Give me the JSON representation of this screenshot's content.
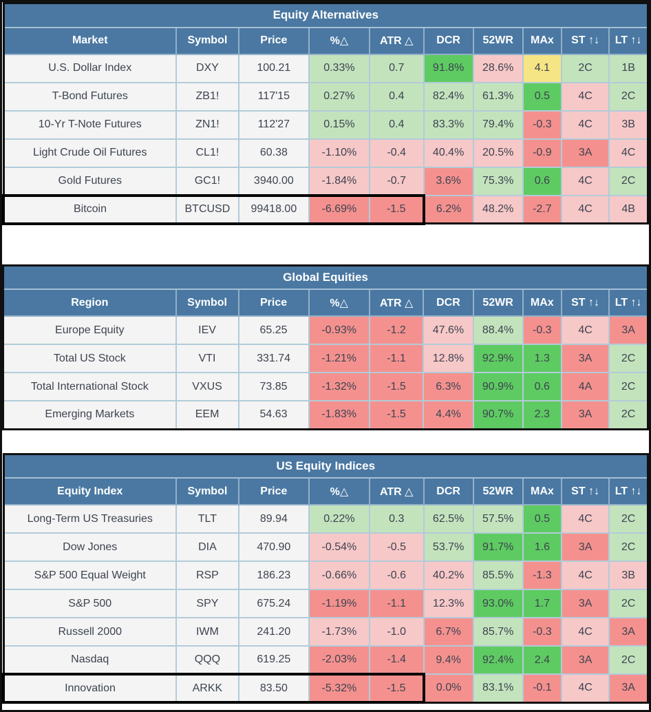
{
  "palette": {
    "n": "#f4f4f4",
    "g": "#c3e3bd",
    "G": "#5ecb62",
    "r": "#f7c8c8",
    "R": "#f4918f",
    "y": "#f6e584",
    "headerBlue": "#4a78a2",
    "gridLine": "#b2cbd9",
    "highlightBorder": "#000000"
  },
  "column_widths_pct": [
    26.8,
    9.7,
    10.9,
    9.4,
    8.4,
    7.7,
    7.7,
    6.0,
    7.4,
    6.0
  ],
  "tables": [
    {
      "title": "Equity Alternatives",
      "columns": [
        {
          "label": "Market",
          "sortable": false
        },
        {
          "label": "Symbol",
          "sortable": false
        },
        {
          "label": "Price",
          "sortable": false
        },
        {
          "label": "%△",
          "sortable": false
        },
        {
          "label": "ATR △",
          "sortable": false
        },
        {
          "label": "DCR",
          "sortable": false
        },
        {
          "label": "52WR",
          "sortable": false
        },
        {
          "label": "MAx",
          "sortable": false
        },
        {
          "label": "ST ↑↓",
          "sortable": true
        },
        {
          "label": "LT ↑↓",
          "sortable": true
        }
      ],
      "rows": [
        {
          "highlight": false,
          "cells": [
            {
              "t": "U.S. Dollar Index",
              "c": "n"
            },
            {
              "t": "DXY",
              "c": "n"
            },
            {
              "t": "100.21",
              "c": "n"
            },
            {
              "t": "0.33%",
              "c": "g"
            },
            {
              "t": "0.7",
              "c": "g"
            },
            {
              "t": "91.8%",
              "c": "G"
            },
            {
              "t": "28.6%",
              "c": "r"
            },
            {
              "t": "4.1",
              "c": "y"
            },
            {
              "t": "2C",
              "c": "g"
            },
            {
              "t": "1B",
              "c": "g"
            }
          ]
        },
        {
          "highlight": false,
          "cells": [
            {
              "t": "T-Bond Futures",
              "c": "n"
            },
            {
              "t": "ZB1!",
              "c": "n"
            },
            {
              "t": "117'15",
              "c": "n"
            },
            {
              "t": "0.27%",
              "c": "g"
            },
            {
              "t": "0.4",
              "c": "g"
            },
            {
              "t": "82.4%",
              "c": "g"
            },
            {
              "t": "61.3%",
              "c": "g"
            },
            {
              "t": "0.5",
              "c": "G"
            },
            {
              "t": "4C",
              "c": "r"
            },
            {
              "t": "2C",
              "c": "g"
            }
          ]
        },
        {
          "highlight": false,
          "cells": [
            {
              "t": "10-Yr T-Note Futures",
              "c": "n"
            },
            {
              "t": "ZN1!",
              "c": "n"
            },
            {
              "t": "112'27",
              "c": "n"
            },
            {
              "t": "0.15%",
              "c": "g"
            },
            {
              "t": "0.4",
              "c": "g"
            },
            {
              "t": "83.3%",
              "c": "g"
            },
            {
              "t": "79.4%",
              "c": "g"
            },
            {
              "t": "-0.3",
              "c": "R"
            },
            {
              "t": "4C",
              "c": "r"
            },
            {
              "t": "3B",
              "c": "r"
            }
          ]
        },
        {
          "highlight": false,
          "cells": [
            {
              "t": "Light Crude Oil Futures",
              "c": "n"
            },
            {
              "t": "CL1!",
              "c": "n"
            },
            {
              "t": "60.38",
              "c": "n"
            },
            {
              "t": "-1.10%",
              "c": "r"
            },
            {
              "t": "-0.4",
              "c": "r"
            },
            {
              "t": "40.4%",
              "c": "r"
            },
            {
              "t": "20.5%",
              "c": "r"
            },
            {
              "t": "-0.9",
              "c": "R"
            },
            {
              "t": "3A",
              "c": "R"
            },
            {
              "t": "4C",
              "c": "r"
            }
          ]
        },
        {
          "highlight": false,
          "cells": [
            {
              "t": "Gold Futures",
              "c": "n"
            },
            {
              "t": "GC1!",
              "c": "n"
            },
            {
              "t": "3940.00",
              "c": "n"
            },
            {
              "t": "-1.84%",
              "c": "r"
            },
            {
              "t": "-0.7",
              "c": "r"
            },
            {
              "t": "3.6%",
              "c": "R"
            },
            {
              "t": "75.3%",
              "c": "g"
            },
            {
              "t": "0.6",
              "c": "G"
            },
            {
              "t": "4C",
              "c": "r"
            },
            {
              "t": "2C",
              "c": "g"
            }
          ]
        },
        {
          "highlight": true,
          "cells": [
            {
              "t": "Bitcoin",
              "c": "n"
            },
            {
              "t": "BTCUSD",
              "c": "n"
            },
            {
              "t": "99418.00",
              "c": "n"
            },
            {
              "t": "-6.69%",
              "c": "R"
            },
            {
              "t": "-1.5",
              "c": "R"
            },
            {
              "t": "6.2%",
              "c": "R"
            },
            {
              "t": "48.2%",
              "c": "r"
            },
            {
              "t": "-2.7",
              "c": "R"
            },
            {
              "t": "4C",
              "c": "r"
            },
            {
              "t": "4B",
              "c": "r"
            }
          ]
        }
      ]
    },
    {
      "title": "Global Equities",
      "columns": [
        {
          "label": "Region",
          "sortable": false
        },
        {
          "label": "Symbol",
          "sortable": false
        },
        {
          "label": "Price",
          "sortable": false
        },
        {
          "label": "%△",
          "sortable": false
        },
        {
          "label": "ATR △",
          "sortable": false
        },
        {
          "label": "DCR",
          "sortable": false
        },
        {
          "label": "52WR",
          "sortable": false
        },
        {
          "label": "MAx",
          "sortable": false
        },
        {
          "label": "ST ↑↓",
          "sortable": true
        },
        {
          "label": "LT ↑↓",
          "sortable": true
        }
      ],
      "rows": [
        {
          "highlight": false,
          "cells": [
            {
              "t": "Europe Equity",
              "c": "n"
            },
            {
              "t": "IEV",
              "c": "n"
            },
            {
              "t": "65.25",
              "c": "n"
            },
            {
              "t": "-0.93%",
              "c": "R"
            },
            {
              "t": "-1.2",
              "c": "R"
            },
            {
              "t": "47.6%",
              "c": "r"
            },
            {
              "t": "88.4%",
              "c": "g"
            },
            {
              "t": "-0.3",
              "c": "R"
            },
            {
              "t": "4C",
              "c": "r"
            },
            {
              "t": "3A",
              "c": "R"
            }
          ]
        },
        {
          "highlight": false,
          "cells": [
            {
              "t": "Total US Stock",
              "c": "n"
            },
            {
              "t": "VTI",
              "c": "n"
            },
            {
              "t": "331.74",
              "c": "n"
            },
            {
              "t": "-1.21%",
              "c": "R"
            },
            {
              "t": "-1.1",
              "c": "R"
            },
            {
              "t": "12.8%",
              "c": "r"
            },
            {
              "t": "92.9%",
              "c": "G"
            },
            {
              "t": "1.3",
              "c": "G"
            },
            {
              "t": "3A",
              "c": "R"
            },
            {
              "t": "2C",
              "c": "g"
            }
          ]
        },
        {
          "highlight": false,
          "cells": [
            {
              "t": "Total International Stock",
              "c": "n"
            },
            {
              "t": "VXUS",
              "c": "n"
            },
            {
              "t": "73.85",
              "c": "n"
            },
            {
              "t": "-1.32%",
              "c": "R"
            },
            {
              "t": "-1.5",
              "c": "R"
            },
            {
              "t": "6.3%",
              "c": "R"
            },
            {
              "t": "90.9%",
              "c": "G"
            },
            {
              "t": "0.6",
              "c": "G"
            },
            {
              "t": "4A",
              "c": "R"
            },
            {
              "t": "2C",
              "c": "g"
            }
          ]
        },
        {
          "highlight": false,
          "cells": [
            {
              "t": "Emerging Markets",
              "c": "n"
            },
            {
              "t": "EEM",
              "c": "n"
            },
            {
              "t": "54.63",
              "c": "n"
            },
            {
              "t": "-1.83%",
              "c": "R"
            },
            {
              "t": "-1.5",
              "c": "R"
            },
            {
              "t": "4.4%",
              "c": "R"
            },
            {
              "t": "90.7%",
              "c": "G"
            },
            {
              "t": "2.3",
              "c": "G"
            },
            {
              "t": "3A",
              "c": "R"
            },
            {
              "t": "2C",
              "c": "g"
            }
          ]
        }
      ]
    },
    {
      "title": "US Equity Indices",
      "columns": [
        {
          "label": "Equity Index",
          "sortable": false
        },
        {
          "label": "Symbol",
          "sortable": false
        },
        {
          "label": "Price",
          "sortable": false
        },
        {
          "label": "%△",
          "sortable": false
        },
        {
          "label": "ATR △",
          "sortable": false
        },
        {
          "label": "DCR",
          "sortable": false
        },
        {
          "label": "52WR",
          "sortable": false
        },
        {
          "label": "MAx",
          "sortable": false
        },
        {
          "label": "ST ↑↓",
          "sortable": true
        },
        {
          "label": "LT ↑↓",
          "sortable": true
        }
      ],
      "rows": [
        {
          "highlight": false,
          "cells": [
            {
              "t": "Long-Term US Treasuries",
              "c": "n"
            },
            {
              "t": "TLT",
              "c": "n"
            },
            {
              "t": "89.94",
              "c": "n"
            },
            {
              "t": "0.22%",
              "c": "g"
            },
            {
              "t": "0.3",
              "c": "g"
            },
            {
              "t": "62.5%",
              "c": "g"
            },
            {
              "t": "57.5%",
              "c": "g"
            },
            {
              "t": "0.5",
              "c": "G"
            },
            {
              "t": "4C",
              "c": "r"
            },
            {
              "t": "2C",
              "c": "g"
            }
          ]
        },
        {
          "highlight": false,
          "cells": [
            {
              "t": "Dow Jones",
              "c": "n"
            },
            {
              "t": "DIA",
              "c": "n"
            },
            {
              "t": "470.90",
              "c": "n"
            },
            {
              "t": "-0.54%",
              "c": "r"
            },
            {
              "t": "-0.5",
              "c": "r"
            },
            {
              "t": "53.7%",
              "c": "g"
            },
            {
              "t": "91.7%",
              "c": "G"
            },
            {
              "t": "1.6",
              "c": "G"
            },
            {
              "t": "3A",
              "c": "R"
            },
            {
              "t": "2C",
              "c": "g"
            }
          ]
        },
        {
          "highlight": false,
          "cells": [
            {
              "t": "S&P 500 Equal Weight",
              "c": "n"
            },
            {
              "t": "RSP",
              "c": "n"
            },
            {
              "t": "186.23",
              "c": "n"
            },
            {
              "t": "-0.66%",
              "c": "r"
            },
            {
              "t": "-0.6",
              "c": "r"
            },
            {
              "t": "40.2%",
              "c": "r"
            },
            {
              "t": "85.5%",
              "c": "g"
            },
            {
              "t": "-1.3",
              "c": "R"
            },
            {
              "t": "4C",
              "c": "r"
            },
            {
              "t": "3B",
              "c": "r"
            }
          ]
        },
        {
          "highlight": false,
          "cells": [
            {
              "t": "S&P 500",
              "c": "n"
            },
            {
              "t": "SPY",
              "c": "n"
            },
            {
              "t": "675.24",
              "c": "n"
            },
            {
              "t": "-1.19%",
              "c": "R"
            },
            {
              "t": "-1.1",
              "c": "R"
            },
            {
              "t": "12.3%",
              "c": "r"
            },
            {
              "t": "93.0%",
              "c": "G"
            },
            {
              "t": "1.7",
              "c": "G"
            },
            {
              "t": "3A",
              "c": "R"
            },
            {
              "t": "2C",
              "c": "g"
            }
          ]
        },
        {
          "highlight": false,
          "cells": [
            {
              "t": "Russell 2000",
              "c": "n"
            },
            {
              "t": "IWM",
              "c": "n"
            },
            {
              "t": "241.20",
              "c": "n"
            },
            {
              "t": "-1.73%",
              "c": "r"
            },
            {
              "t": "-1.0",
              "c": "r"
            },
            {
              "t": "6.7%",
              "c": "R"
            },
            {
              "t": "85.7%",
              "c": "g"
            },
            {
              "t": "-0.3",
              "c": "R"
            },
            {
              "t": "4C",
              "c": "r"
            },
            {
              "t": "3A",
              "c": "R"
            }
          ]
        },
        {
          "highlight": false,
          "cells": [
            {
              "t": "Nasdaq",
              "c": "n"
            },
            {
              "t": "QQQ",
              "c": "n"
            },
            {
              "t": "619.25",
              "c": "n"
            },
            {
              "t": "-2.03%",
              "c": "R"
            },
            {
              "t": "-1.4",
              "c": "R"
            },
            {
              "t": "9.4%",
              "c": "R"
            },
            {
              "t": "92.4%",
              "c": "G"
            },
            {
              "t": "2.4",
              "c": "G"
            },
            {
              "t": "3A",
              "c": "R"
            },
            {
              "t": "2C",
              "c": "g"
            }
          ]
        },
        {
          "highlight": true,
          "cells": [
            {
              "t": "Innovation",
              "c": "n"
            },
            {
              "t": "ARKK",
              "c": "n"
            },
            {
              "t": "83.50",
              "c": "n"
            },
            {
              "t": "-5.32%",
              "c": "R"
            },
            {
              "t": "-1.5",
              "c": "R"
            },
            {
              "t": "0.0%",
              "c": "R"
            },
            {
              "t": "83.1%",
              "c": "g"
            },
            {
              "t": "-0.1",
              "c": "R"
            },
            {
              "t": "4C",
              "c": "r"
            },
            {
              "t": "3A",
              "c": "R"
            }
          ]
        }
      ]
    }
  ]
}
